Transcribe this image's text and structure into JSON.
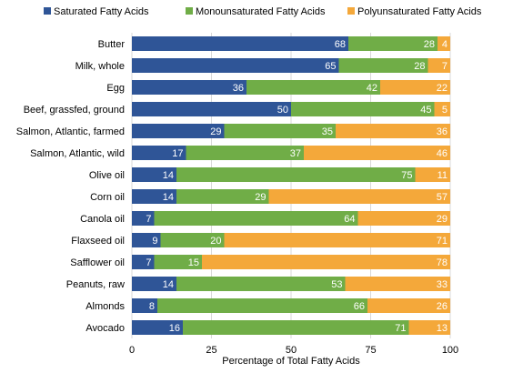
{
  "chart_data": {
    "type": "bar",
    "orientation": "horizontal",
    "stacked": true,
    "title": "",
    "xlabel": "Percentage of Total Fatty Acids",
    "ylabel": "",
    "xlim": [
      0,
      100
    ],
    "xticks": [
      0,
      25,
      50,
      75,
      100
    ],
    "legend_position": "top",
    "grid": true,
    "categories": [
      "Butter",
      "Milk, whole",
      "Egg",
      "Beef, grassfed, ground",
      "Salmon, Atlantic, farmed",
      "Salmon, Atlantic, wild",
      "Olive oil",
      "Corn oil",
      "Canola oil",
      "Flaxseed oil",
      "Safflower oil",
      "Peanuts, raw",
      "Almonds",
      "Avocado"
    ],
    "series": [
      {
        "name": "Saturated Fatty Acids",
        "color": "#2F5597",
        "values": [
          68,
          65,
          36,
          50,
          29,
          17,
          14,
          14,
          7,
          9,
          7,
          14,
          8,
          16
        ]
      },
      {
        "name": "Monounsaturated Fatty Acids",
        "color": "#70AD47",
        "values": [
          28,
          28,
          42,
          45,
          35,
          37,
          75,
          29,
          64,
          20,
          15,
          53,
          66,
          71
        ]
      },
      {
        "name": "Polyunsaturated Fatty Acids",
        "color": "#F4A83A",
        "values": [
          4,
          7,
          22,
          5,
          36,
          46,
          11,
          57,
          29,
          71,
          78,
          33,
          26,
          13
        ]
      }
    ]
  }
}
